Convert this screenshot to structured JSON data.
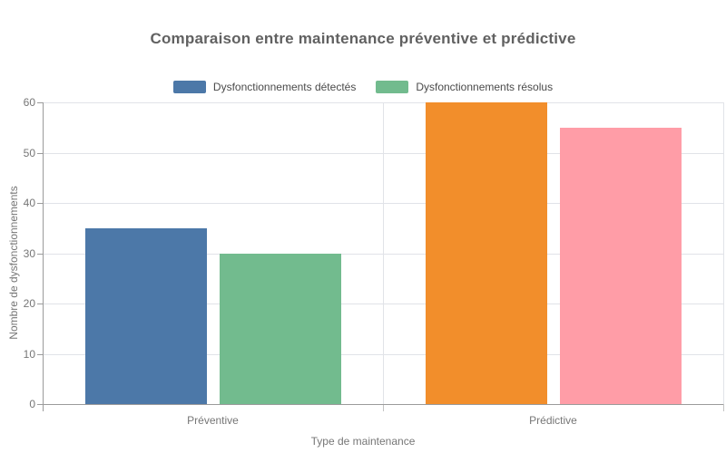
{
  "chart_data": {
    "type": "bar",
    "title": "Comparaison entre maintenance préventive et prédictive",
    "categories": [
      "Préventive",
      "Prédictive"
    ],
    "series": [
      {
        "name": "Dysfonctionnements détectés",
        "values": [
          35,
          60
        ],
        "colors": [
          "#4C78A8",
          "#F28E2B"
        ],
        "legend_color": "#4C78A8"
      },
      {
        "name": "Dysfonctionnements résolus",
        "values": [
          30,
          55
        ],
        "colors": [
          "#72BB8E",
          "#FF9DA7"
        ],
        "legend_color": "#72BB8E"
      }
    ],
    "xlabel": "Type de maintenance",
    "ylabel": "Nombre de dysfonctionnements",
    "ylim": [
      0,
      60
    ],
    "yticks": [
      0,
      10,
      20,
      30,
      40,
      50,
      60
    ],
    "grid": true,
    "legend_position": "top-center"
  },
  "style_colors": {
    "grid": "#e1e3e8",
    "axis": "#9b9b9b",
    "tick_text": "#767676",
    "title_text": "#616161",
    "legend_text": "#4a4a4a",
    "background": "#ffffff"
  }
}
